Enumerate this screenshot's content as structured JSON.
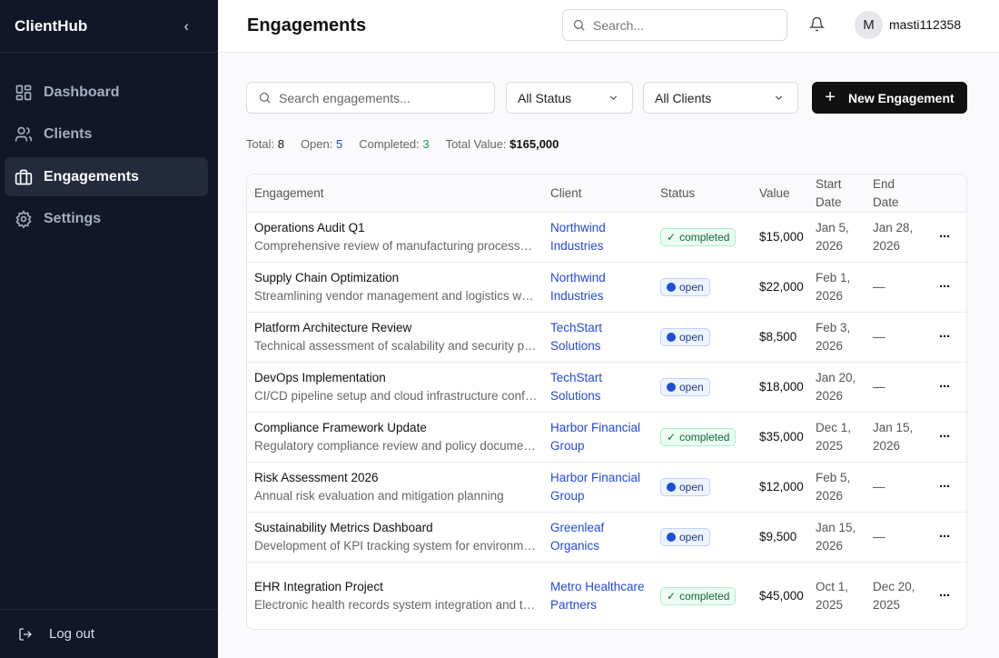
{
  "app": {
    "name": "ClientHub"
  },
  "sidebar": {
    "items": [
      {
        "label": "Dashboard",
        "icon": "grid-icon"
      },
      {
        "label": "Clients",
        "icon": "users-icon"
      },
      {
        "label": "Engagements",
        "icon": "briefcase-icon",
        "active": true
      },
      {
        "label": "Settings",
        "icon": "gear-icon"
      }
    ],
    "logout": "Log out"
  },
  "header": {
    "title": "Engagements",
    "search_placeholder": "Search...",
    "avatar_initial": "M",
    "username": "masti112358"
  },
  "filters": {
    "search_placeholder": "Search engagements...",
    "status": "All Status",
    "client": "All Clients",
    "new_button": "New Engagement"
  },
  "stats": {
    "total_label": "Total:",
    "total": "8",
    "open_label": "Open:",
    "open": "5",
    "completed_label": "Completed:",
    "completed": "3",
    "value_label": "Total Value:",
    "value": "$165,000"
  },
  "colors": {
    "accent": "#2448e0",
    "open_count": "#2448e0",
    "completed_count": "#16a34a",
    "sidebar": "#111628"
  },
  "table": {
    "columns": [
      "Engagement",
      "Client",
      "Status",
      "Value",
      "Start Date",
      "End Date"
    ],
    "rows": [
      {
        "name": "Operations Audit Q1",
        "desc": "Comprehensive review of manufacturing processes and operational efficiency",
        "client": "Northwind Industries",
        "status": "completed",
        "value": "$15,000",
        "start": "Jan 5, 2026",
        "end": "Jan 28, 2026"
      },
      {
        "name": "Supply Chain Optimization",
        "desc": "Streamlining vendor management and logistics workflows",
        "client": "Northwind Industries",
        "status": "open",
        "value": "$22,000",
        "start": "Feb 1, 2026",
        "end": "—"
      },
      {
        "name": "Platform Architecture Review",
        "desc": "Technical assessment of scalability and security posture",
        "client": "TechStart Solutions",
        "status": "open",
        "value": "$8,500",
        "start": "Feb 3, 2026",
        "end": "—"
      },
      {
        "name": "DevOps Implementation",
        "desc": "CI/CD pipeline setup and cloud infrastructure configuration",
        "client": "TechStart Solutions",
        "status": "open",
        "value": "$18,000",
        "start": "Jan 20, 2026",
        "end": "—"
      },
      {
        "name": "Compliance Framework Update",
        "desc": "Regulatory compliance review and policy documentation",
        "client": "Harbor Financial Group",
        "status": "completed",
        "value": "$35,000",
        "start": "Dec 1, 2025",
        "end": "Jan 15, 2026"
      },
      {
        "name": "Risk Assessment 2026",
        "desc": "Annual risk evaluation and mitigation planning",
        "client": "Harbor Financial Group",
        "status": "open",
        "value": "$12,000",
        "start": "Feb 5, 2026",
        "end": "—"
      },
      {
        "name": "Sustainability Metrics Dashboard",
        "desc": "Development of KPI tracking system for environmental metrics",
        "client": "Greenleaf Organics",
        "status": "open",
        "value": "$9,500",
        "start": "Jan 15, 2026",
        "end": "—"
      },
      {
        "name": "EHR Integration Project",
        "desc": "Electronic health records system integration and training",
        "client": "Metro Healthcare Partners",
        "status": "completed",
        "value": "$45,000",
        "start": "Oct 1, 2025",
        "end": "Dec 20, 2025"
      }
    ]
  }
}
